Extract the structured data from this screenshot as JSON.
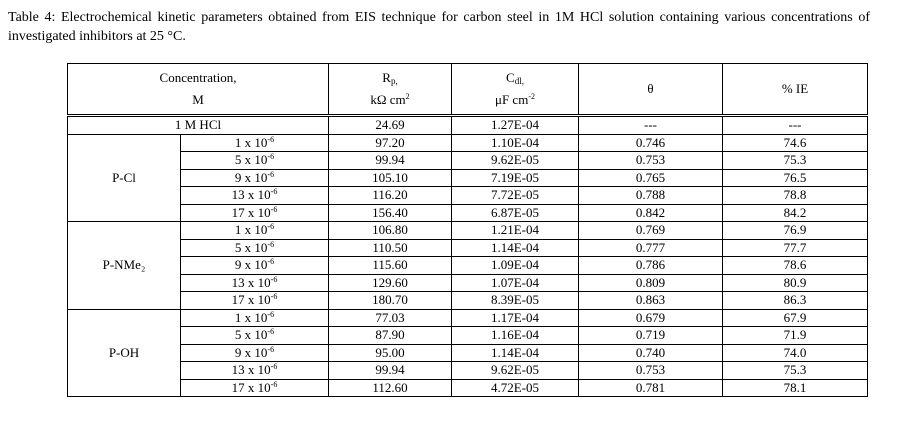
{
  "caption": "Table 4: Electrochemical kinetic parameters obtained from EIS technique for carbon steel in 1M HCl solution containing various concentrations of investigated inhibitors at 25 °C.",
  "header": {
    "concentration": [
      "Concentration,",
      "M"
    ],
    "rp": {
      "main": "R",
      "sub": "p,",
      "unit": "kΩ cm",
      "unit_exp": "2"
    },
    "cdl": {
      "main": "C",
      "sub": "dl,",
      "unit": "μF cm",
      "unit_exp": "-2"
    },
    "theta": "θ",
    "ie": "% IE"
  },
  "blank": {
    "label": "1 M HCl",
    "rp": "24.69",
    "cdl": "1.27E-04",
    "theta": "---",
    "ie": "---"
  },
  "groups": [
    {
      "name": "P-Cl",
      "rows": [
        {
          "conc": {
            "base": "1 x 10",
            "exp": "-6"
          },
          "rp": "97.20",
          "cdl": "1.10E-04",
          "theta": "0.746",
          "ie": "74.6"
        },
        {
          "conc": {
            "base": "5 x 10",
            "exp": "-6"
          },
          "rp": "99.94",
          "cdl": "9.62E-05",
          "theta": "0.753",
          "ie": "75.3"
        },
        {
          "conc": {
            "base": "9 x 10",
            "exp": "-6"
          },
          "rp": "105.10",
          "cdl": "7.19E-05",
          "theta": "0.765",
          "ie": "76.5"
        },
        {
          "conc": {
            "base": "13 x 10",
            "exp": "-6"
          },
          "rp": "116.20",
          "cdl": "7.72E-05",
          "theta": "0.788",
          "ie": "78.8"
        },
        {
          "conc": {
            "base": "17 x 10",
            "exp": "-6"
          },
          "rp": "156.40",
          "cdl": "6.87E-05",
          "theta": "0.842",
          "ie": "84.2"
        }
      ]
    },
    {
      "name": "P-NMe₂",
      "rows": [
        {
          "conc": {
            "base": "1 x 10",
            "exp": "-6"
          },
          "rp": "106.80",
          "cdl": "1.21E-04",
          "theta": "0.769",
          "ie": "76.9"
        },
        {
          "conc": {
            "base": "5 x 10",
            "exp": "-6"
          },
          "rp": "110.50",
          "cdl": "1.14E-04",
          "theta": "0.777",
          "ie": "77.7"
        },
        {
          "conc": {
            "base": "9 x 10",
            "exp": "-6"
          },
          "rp": "115.60",
          "cdl": "1.09E-04",
          "theta": "0.786",
          "ie": "78.6"
        },
        {
          "conc": {
            "base": "13 x 10",
            "exp": "-6"
          },
          "rp": "129.60",
          "cdl": "1.07E-04",
          "theta": "0.809",
          "ie": "80.9"
        },
        {
          "conc": {
            "base": "17 x 10",
            "exp": "-6"
          },
          "rp": "180.70",
          "cdl": "8.39E-05",
          "theta": "0.863",
          "ie": "86.3"
        }
      ]
    },
    {
      "name": "P-OH",
      "rows": [
        {
          "conc": {
            "base": "1 x 10",
            "exp": "-6"
          },
          "rp": "77.03",
          "cdl": "1.17E-04",
          "theta": "0.679",
          "ie": "67.9"
        },
        {
          "conc": {
            "base": "5 x 10",
            "exp": "-6"
          },
          "rp": "87.90",
          "cdl": "1.16E-04",
          "theta": "0.719",
          "ie": "71.9"
        },
        {
          "conc": {
            "base": "9 x 10",
            "exp": "-6"
          },
          "rp": "95.00",
          "cdl": "1.14E-04",
          "theta": "0.740",
          "ie": "74.0"
        },
        {
          "conc": {
            "base": "13 x 10",
            "exp": "-6"
          },
          "rp": "99.94",
          "cdl": "9.62E-05",
          "theta": "0.753",
          "ie": "75.3"
        },
        {
          "conc": {
            "base": "17 x 10",
            "exp": "-6"
          },
          "rp": "112.60",
          "cdl": "4.72E-05",
          "theta": "0.781",
          "ie": "78.1"
        }
      ]
    }
  ]
}
